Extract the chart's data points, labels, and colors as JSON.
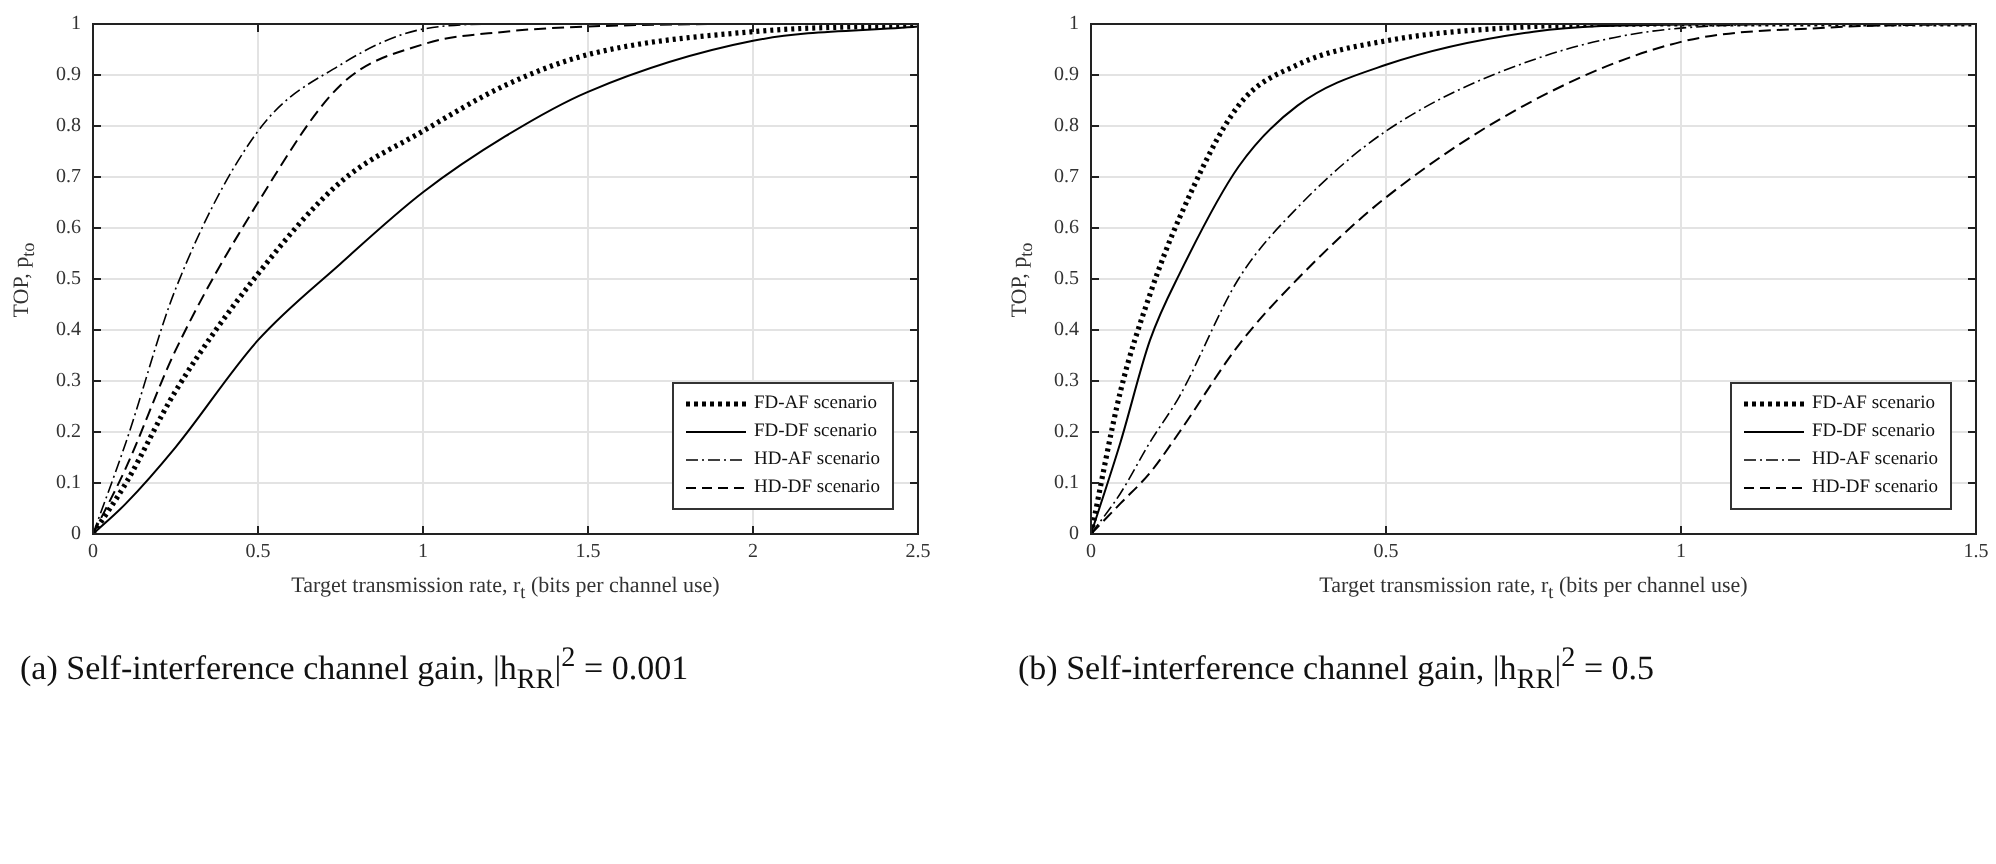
{
  "chart_data": [
    {
      "type": "line",
      "xlabel": "Target transmission rate,  r$_{t}$  (bits per channel use)",
      "ylabel": "TOP,  p$_{to}$",
      "annotations": [
        "(a) Self-interference channel gain, |h$_{RR}$|$^{2}$ = 0.001"
      ],
      "x": [
        0,
        0.1,
        0.25,
        0.5,
        0.75,
        1,
        1.25,
        1.5,
        2,
        2.5
      ],
      "xlim": [
        0,
        2.5
      ],
      "xticks": [
        0,
        0.5,
        1,
        1.5,
        2,
        2.5
      ],
      "ylim": [
        0,
        1
      ],
      "yticks": [
        0,
        0.1,
        0.2,
        0.3,
        0.4,
        0.5,
        0.6,
        0.7,
        0.8,
        0.9,
        1
      ],
      "grid": true,
      "legend": "bottom right",
      "marker": "none",
      "series": [
        {
          "name": "FD-AF  scenario",
          "color": "#000000",
          "line_style": "dotted",
          "values": [
            0,
            0.1,
            0.28,
            0.51,
            0.69,
            0.79,
            0.88,
            0.94,
            0.985,
            0.998
          ]
        },
        {
          "name": "FD-DF  scenario",
          "color": "#000000",
          "line_style": "solid",
          "values": [
            0,
            0.06,
            0.17,
            0.38,
            0.53,
            0.67,
            0.78,
            0.867,
            0.967,
            0.995
          ]
        },
        {
          "name": "HD-AF scenario",
          "color": "#000000",
          "line_style": "dashdot",
          "values": [
            0,
            0.18,
            0.48,
            0.79,
            0.92,
            0.99,
            1,
            1,
            1,
            1
          ]
        },
        {
          "name": "HD-DF scenario",
          "color": "#000000",
          "line_style": "dashed",
          "values": [
            0,
            0.13,
            0.36,
            0.65,
            0.88,
            0.96,
            0.985,
            0.995,
            1,
            1
          ]
        }
      ]
    },
    {
      "type": "line",
      "xlabel": "Target transmission rate, r$_{t}$  (bits per channel use)",
      "ylabel": "TOP,  p$_{to}$",
      "annotations": [
        "(b) Self-interference channel gain, |h$_{RR}$|$^{2}$ = 0.5"
      ],
      "x": [
        0,
        0.05,
        0.1,
        0.15,
        0.25,
        0.35,
        0.5,
        0.75,
        1,
        1.25,
        1.5
      ],
      "xlim": [
        0,
        1.5
      ],
      "xticks": [
        0,
        0.5,
        1,
        1.5
      ],
      "ylim": [
        0,
        1
      ],
      "yticks": [
        0,
        0.1,
        0.2,
        0.3,
        0.4,
        0.5,
        0.6,
        0.7,
        0.8,
        0.9,
        1
      ],
      "grid": true,
      "legend": "bottom right",
      "marker": "none",
      "series": [
        {
          "name": "FD-AF  scenario",
          "color": "#000000",
          "line_style": "dotted",
          "values": [
            0,
            0.28,
            0.47,
            0.62,
            0.84,
            0.92,
            0.967,
            0.995,
            1,
            1,
            1
          ]
        },
        {
          "name": "FD-DF  scenario",
          "color": "#000000",
          "line_style": "solid",
          "values": [
            0,
            0.18,
            0.38,
            0.51,
            0.72,
            0.84,
            0.92,
            0.985,
            0.999,
            1,
            1
          ]
        },
        {
          "name": "HD-AF scenario",
          "color": "#000000",
          "line_style": "dashdot",
          "values": [
            0,
            0.08,
            0.18,
            0.27,
            0.5,
            0.64,
            0.79,
            0.93,
            0.992,
            1,
            1
          ]
        },
        {
          "name": "HD-DF scenario",
          "color": "#000000",
          "line_style": "dashed",
          "values": [
            0,
            0.06,
            0.12,
            0.2,
            0.37,
            0.5,
            0.66,
            0.85,
            0.965,
            0.993,
            1
          ]
        }
      ]
    }
  ]
}
